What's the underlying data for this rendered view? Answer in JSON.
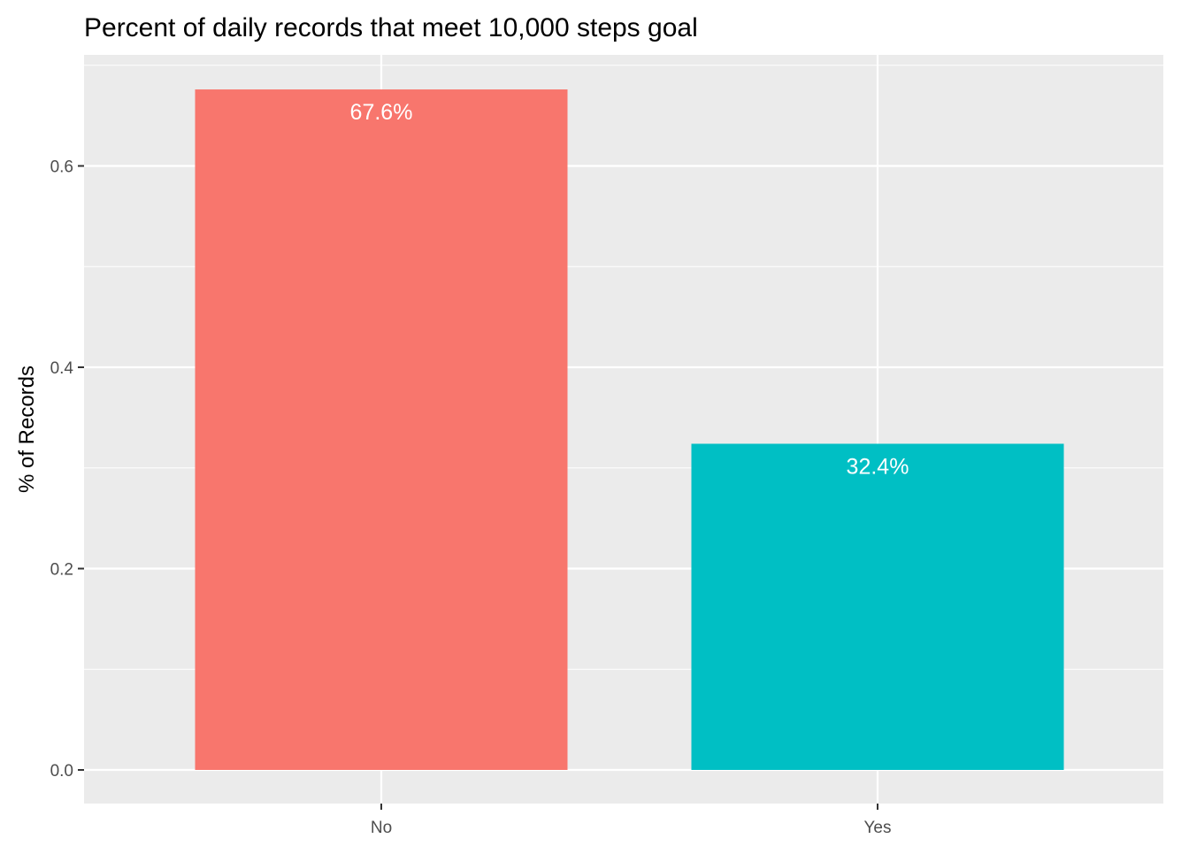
{
  "chart_data": {
    "type": "bar",
    "title": "Percent of daily records that meet 10,000 steps goal",
    "xlabel": "",
    "ylabel": "% of Records",
    "categories": [
      "No",
      "Yes"
    ],
    "values": [
      0.676,
      0.324
    ],
    "data_labels": [
      "67.6%",
      "32.4%"
    ],
    "colors": [
      "#F8766D",
      "#00BFC4"
    ],
    "ylim": [
      0,
      0.7
    ],
    "yticks": [
      0.0,
      0.2,
      0.4,
      0.6
    ],
    "ytick_labels": [
      "0.0",
      "0.2",
      "0.4",
      "0.6"
    ],
    "grid": true,
    "legend": "none",
    "panel_background": "#EBEBEB",
    "grid_color": "#FFFFFF"
  }
}
